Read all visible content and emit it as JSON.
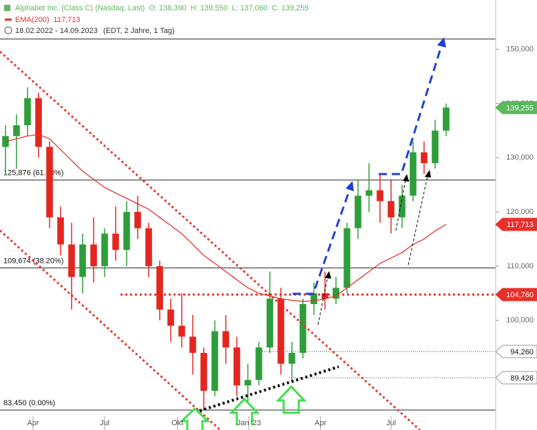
{
  "chart_data": {
    "type": "candlestick",
    "title": "Alphabet Inc. (Class C) (Nasdaq, Last)",
    "ohlc_labels": [
      "O: 138,390",
      "H: 139,550",
      "L: 137,060",
      "C: 139,255"
    ],
    "indicator": {
      "name": "EMA(200)",
      "value_label": "117,713",
      "color": "#e8302a"
    },
    "period": "18.02.2022 - 14.09.2023",
    "period_note": "(EDT, 2 Jahre, 1 Tag)",
    "x": [
      0,
      1,
      2,
      3,
      4,
      5,
      6,
      7,
      8,
      9,
      10,
      11,
      12,
      13,
      14,
      15,
      16,
      17,
      18,
      19,
      20,
      21,
      22,
      23,
      24,
      25,
      26,
      27,
      28,
      29,
      30,
      31,
      32,
      33,
      34,
      35,
      36,
      37,
      38,
      39,
      40
    ],
    "open": [
      132,
      134,
      136,
      141,
      132,
      119,
      114,
      108,
      114,
      110,
      116,
      113,
      120,
      117,
      110,
      102,
      99,
      97,
      94,
      87,
      98,
      95,
      88,
      89,
      95,
      104,
      92,
      94,
      103,
      105,
      104,
      106,
      117,
      123,
      124,
      122,
      119,
      123,
      131,
      129,
      135
    ],
    "high": [
      136,
      138,
      143,
      142,
      133,
      121,
      118,
      116,
      119,
      117,
      121,
      122,
      123,
      118,
      111,
      104,
      105,
      101,
      95,
      100,
      101,
      97,
      92,
      96,
      109,
      106,
      96,
      104,
      107,
      109,
      108,
      118,
      126,
      129,
      127,
      126,
      125,
      133,
      133,
      137,
      140
    ],
    "low": [
      127,
      128,
      134,
      130,
      117,
      112,
      102,
      105,
      107,
      108,
      111,
      110,
      115,
      108,
      100,
      96,
      95,
      90,
      83.45,
      86,
      92,
      86,
      85,
      88,
      94,
      90,
      89,
      93,
      101,
      102,
      103,
      105,
      115,
      120,
      118,
      116,
      117,
      122,
      127,
      128,
      134
    ],
    "close": [
      134,
      136,
      141,
      132,
      119,
      114,
      108,
      114,
      110,
      116,
      113,
      120,
      117,
      110,
      102,
      99,
      97,
      94,
      87,
      98,
      95,
      88,
      89,
      95,
      104,
      92,
      94,
      103,
      105,
      104,
      106,
      117,
      123,
      124,
      122,
      119,
      123,
      131,
      129,
      135,
      139.255
    ],
    "ema": [
      133,
      133.5,
      134,
      134.3,
      133.5,
      131.5,
      129.5,
      127.5,
      126,
      124.5,
      123.5,
      122.5,
      121.5,
      120.5,
      119,
      117.5,
      116,
      114,
      112,
      110.5,
      109,
      107.5,
      106,
      105,
      104.5,
      104,
      103.7,
      103.5,
      103.6,
      104,
      104.5,
      106,
      107.5,
      109,
      110.5,
      111.5,
      112.5,
      114,
      115,
      116.5,
      117.713
    ],
    "up_color": "#2e9e3a",
    "down_color": "#e3261f",
    "xlim": [
      -0.5,
      44.5
    ],
    "xticks": [
      {
        "value": 2.5,
        "label": "Apr"
      },
      {
        "value": 9,
        "label": "Jul"
      },
      {
        "value": 15.6,
        "label": "Okt"
      },
      {
        "value": 22.1,
        "label": "Jan '23"
      },
      {
        "value": 28.6,
        "label": "Apr"
      },
      {
        "value": 35,
        "label": "Jul"
      }
    ],
    "ylim": [
      83.2,
      159.1
    ],
    "yticks": [
      {
        "value": 100,
        "label": "100,000"
      },
      {
        "value": 110,
        "label": "110,000"
      },
      {
        "value": 120,
        "label": "120,000"
      },
      {
        "value": 130,
        "label": "130,000"
      },
      {
        "value": 140,
        "label": "140,000"
      },
      {
        "value": 150,
        "label": "150,000"
      }
    ],
    "levels": [
      {
        "value": 151.9
      },
      {
        "value": 125.876,
        "label": "125,876 (61.80%)"
      },
      {
        "value": 109.674,
        "label": "109,674 (38.20%)"
      },
      {
        "value": 83.45,
        "label": "83,450 (0.00%)"
      }
    ],
    "price_tags": [
      {
        "value": 139.255,
        "label": "139,255",
        "color": "#5cb85c"
      },
      {
        "value": 117.713,
        "label": "117,713",
        "color": "#e8302a"
      },
      {
        "value": 104.76,
        "label": "104,760",
        "color": "#e8302a"
      },
      {
        "value": 94.26,
        "label": "94,260",
        "color": "#ffffff"
      },
      {
        "value": 89.426,
        "label": "89,426",
        "color": "#ffffff"
      }
    ]
  }
}
